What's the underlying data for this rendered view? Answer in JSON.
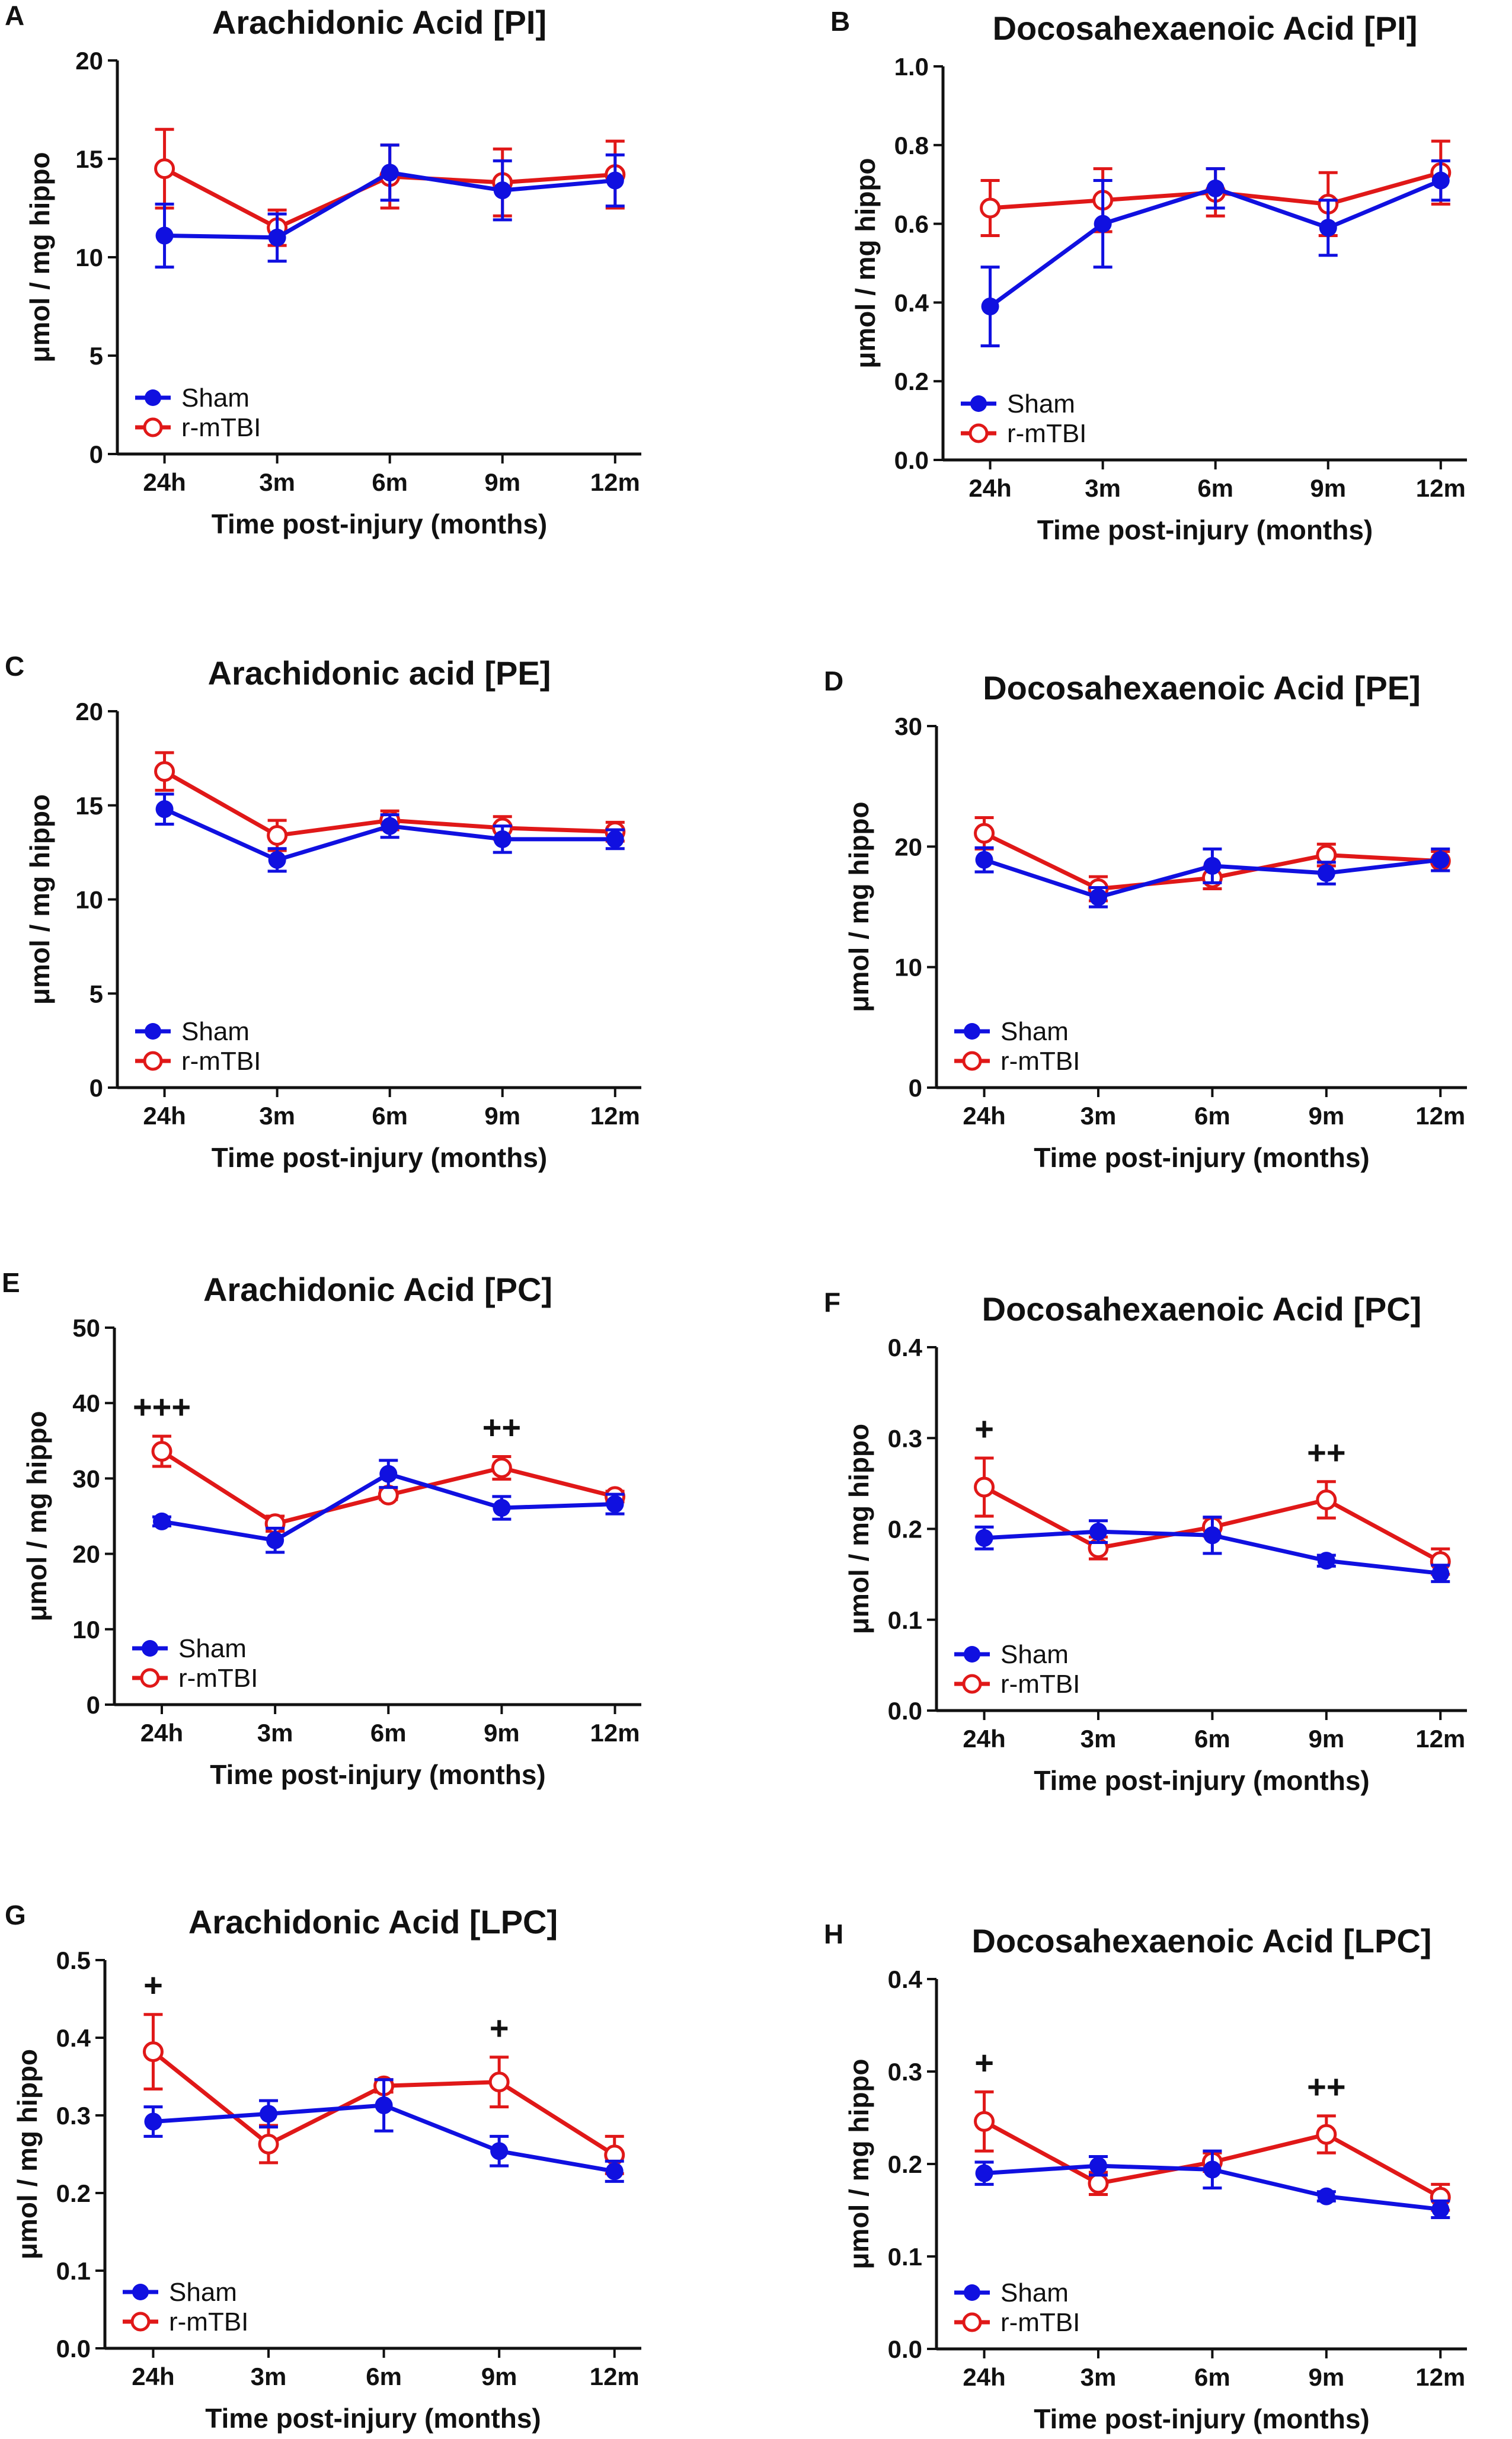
{
  "figure": {
    "colors": {
      "sham": "#1010e0",
      "rmtbi": "#e01818",
      "axis": "#111111"
    },
    "series_names": [
      "Sham",
      "r-mTBI"
    ],
    "categories": [
      "24h",
      "3m",
      "6m",
      "9m",
      "12m"
    ]
  },
  "chart_data": [
    {
      "panel": "A",
      "type": "line",
      "title": "Arachidonic Acid  [PI]",
      "xlabel": "Time post-injury (months)",
      "ylabel": "μmol / mg hippo",
      "categories": [
        "24h",
        "3m",
        "6m",
        "9m",
        "12m"
      ],
      "ylim": [
        0,
        20
      ],
      "yticks": [
        "0",
        "5",
        "10",
        "15",
        "20"
      ],
      "legend": "bottom-left",
      "series": [
        {
          "name": "Sham",
          "values": [
            11.1,
            11.0,
            14.3,
            13.4,
            13.9
          ],
          "errors": [
            1.6,
            1.2,
            1.4,
            1.5,
            1.3
          ]
        },
        {
          "name": "r-mTBI",
          "values": [
            14.5,
            11.5,
            14.1,
            13.8,
            14.2
          ],
          "errors": [
            2.0,
            0.9,
            1.6,
            1.7,
            1.7
          ]
        }
      ],
      "annotations": []
    },
    {
      "panel": "B",
      "type": "line",
      "title": "Docosahexaenoic Acid  [PI]",
      "xlabel": "Time post-injury (months)",
      "ylabel": "μmol / mg hippo",
      "categories": [
        "24h",
        "3m",
        "6m",
        "9m",
        "12m"
      ],
      "ylim": [
        0,
        1.0
      ],
      "yticks": [
        "0.0",
        "0.2",
        "0.4",
        "0.6",
        "0.8",
        "1.0"
      ],
      "legend": "bottom-left",
      "series": [
        {
          "name": "Sham",
          "values": [
            0.39,
            0.6,
            0.69,
            0.59,
            0.71
          ],
          "errors": [
            0.1,
            0.11,
            0.05,
            0.07,
            0.05
          ]
        },
        {
          "name": "r-mTBI",
          "values": [
            0.64,
            0.66,
            0.68,
            0.65,
            0.73
          ],
          "errors": [
            0.07,
            0.08,
            0.06,
            0.08,
            0.08
          ]
        }
      ],
      "annotations": []
    },
    {
      "panel": "C",
      "type": "line",
      "title": "Arachidonic acid [PE]",
      "xlabel": "Time post-injury (months)",
      "ylabel": "μmol / mg hippo",
      "categories": [
        "24h",
        "3m",
        "6m",
        "9m",
        "12m"
      ],
      "ylim": [
        0,
        20
      ],
      "yticks": [
        "0",
        "5",
        "10",
        "15",
        "20"
      ],
      "legend": "bottom-left",
      "series": [
        {
          "name": "Sham",
          "values": [
            14.8,
            12.1,
            13.9,
            13.2,
            13.2
          ],
          "errors": [
            0.8,
            0.6,
            0.6,
            0.7,
            0.5
          ]
        },
        {
          "name": "r-mTBI",
          "values": [
            16.8,
            13.4,
            14.2,
            13.8,
            13.6
          ],
          "errors": [
            1.0,
            0.8,
            0.5,
            0.6,
            0.5
          ]
        }
      ],
      "annotations": []
    },
    {
      "panel": "D",
      "type": "line",
      "title": "Docosahexaenoic Acid  [PE]",
      "xlabel": "Time post-injury (months)",
      "ylabel": "μmol / mg hippo",
      "categories": [
        "24h",
        "3m",
        "6m",
        "9m",
        "12m"
      ],
      "ylim": [
        0,
        30
      ],
      "yticks": [
        "0",
        "10",
        "20",
        "30"
      ],
      "legend": "bottom-left",
      "series": [
        {
          "name": "Sham",
          "values": [
            18.9,
            15.8,
            18.4,
            17.8,
            18.9
          ],
          "errors": [
            1.0,
            0.8,
            1.4,
            0.9,
            0.9
          ]
        },
        {
          "name": "r-mTBI",
          "values": [
            21.1,
            16.5,
            17.4,
            19.3,
            18.8
          ],
          "errors": [
            1.3,
            1.0,
            0.9,
            0.9,
            0.8
          ]
        }
      ],
      "annotations": []
    },
    {
      "panel": "E",
      "type": "line",
      "title": "Arachidonic Acid  [PC]",
      "xlabel": "Time post-injury (months)",
      "ylabel": "μmol / mg hippo",
      "categories": [
        "24h",
        "3m",
        "6m",
        "9m",
        "12m"
      ],
      "ylim": [
        0,
        50
      ],
      "yticks": [
        "0",
        "10",
        "20",
        "30",
        "40",
        "50"
      ],
      "legend": "bottom-left",
      "series": [
        {
          "name": "Sham",
          "values": [
            24.3,
            21.8,
            30.6,
            26.1,
            26.6
          ],
          "errors": [
            0.6,
            1.6,
            1.8,
            1.5,
            1.3
          ]
        },
        {
          "name": "r-mTBI",
          "values": [
            33.6,
            24.0,
            27.8,
            31.4,
            27.6
          ],
          "errors": [
            2.0,
            1.0,
            0.6,
            1.5,
            0.7
          ]
        }
      ],
      "annotations": [
        {
          "category": "24h",
          "text": "+++"
        },
        {
          "category": "9m",
          "text": "++"
        }
      ]
    },
    {
      "panel": "F",
      "type": "line",
      "title": "Docosahexaenoic Acid  [PC]",
      "xlabel": "Time post-injury (months)",
      "ylabel": "μmol / mg hippo",
      "categories": [
        "24h",
        "3m",
        "6m",
        "9m",
        "12m"
      ],
      "ylim": [
        0,
        0.4
      ],
      "yticks": [
        "0.0",
        "0.1",
        "0.2",
        "0.3",
        "0.4"
      ],
      "legend": "bottom-left",
      "series": [
        {
          "name": "Sham",
          "values": [
            0.19,
            0.197,
            0.193,
            0.165,
            0.151
          ],
          "errors": [
            0.012,
            0.012,
            0.02,
            0.006,
            0.009
          ]
        },
        {
          "name": "r-mTBI",
          "values": [
            0.246,
            0.179,
            0.202,
            0.232,
            0.164
          ],
          "errors": [
            0.032,
            0.012,
            0.01,
            0.02,
            0.014
          ]
        }
      ],
      "annotations": [
        {
          "category": "24h",
          "text": "+"
        },
        {
          "category": "9m",
          "text": "++"
        }
      ]
    },
    {
      "panel": "G",
      "type": "line",
      "title": "Arachidonic Acid  [LPC]",
      "xlabel": "Time post-injury (months)",
      "ylabel": "μmol / mg hippo",
      "categories": [
        "24h",
        "3m",
        "6m",
        "9m",
        "12m"
      ],
      "ylim": [
        0,
        0.5
      ],
      "yticks": [
        "0.0",
        "0.1",
        "0.2",
        "0.3",
        "0.4",
        "0.5"
      ],
      "legend": "bottom-left",
      "series": [
        {
          "name": "Sham",
          "values": [
            0.292,
            0.302,
            0.313,
            0.254,
            0.228
          ],
          "errors": [
            0.019,
            0.017,
            0.033,
            0.019,
            0.013
          ]
        },
        {
          "name": "r-mTBI",
          "values": [
            0.382,
            0.263,
            0.338,
            0.343,
            0.249
          ],
          "errors": [
            0.048,
            0.024,
            0.008,
            0.032,
            0.024
          ]
        }
      ],
      "annotations": [
        {
          "category": "24h",
          "text": "+"
        },
        {
          "category": "9m",
          "text": "+"
        }
      ]
    },
    {
      "panel": "H",
      "type": "line",
      "title": "Docosahexaenoic Acid  [LPC]",
      "xlabel": "Time post-injury (months)",
      "ylabel": "μmol / mg hippo",
      "categories": [
        "24h",
        "3m",
        "6m",
        "9m",
        "12m"
      ],
      "ylim": [
        0,
        0.4
      ],
      "yticks": [
        "0.0",
        "0.1",
        "0.2",
        "0.3",
        "0.4"
      ],
      "legend": "bottom-left",
      "series": [
        {
          "name": "Sham",
          "values": [
            0.19,
            0.198,
            0.194,
            0.165,
            0.151
          ],
          "errors": [
            0.012,
            0.01,
            0.02,
            0.005,
            0.009
          ]
        },
        {
          "name": "r-mTBI",
          "values": [
            0.246,
            0.179,
            0.202,
            0.232,
            0.164
          ],
          "errors": [
            0.032,
            0.012,
            0.01,
            0.02,
            0.014
          ]
        }
      ],
      "annotations": [
        {
          "category": "24h",
          "text": "+"
        },
        {
          "category": "9m",
          "text": "++"
        }
      ]
    }
  ]
}
